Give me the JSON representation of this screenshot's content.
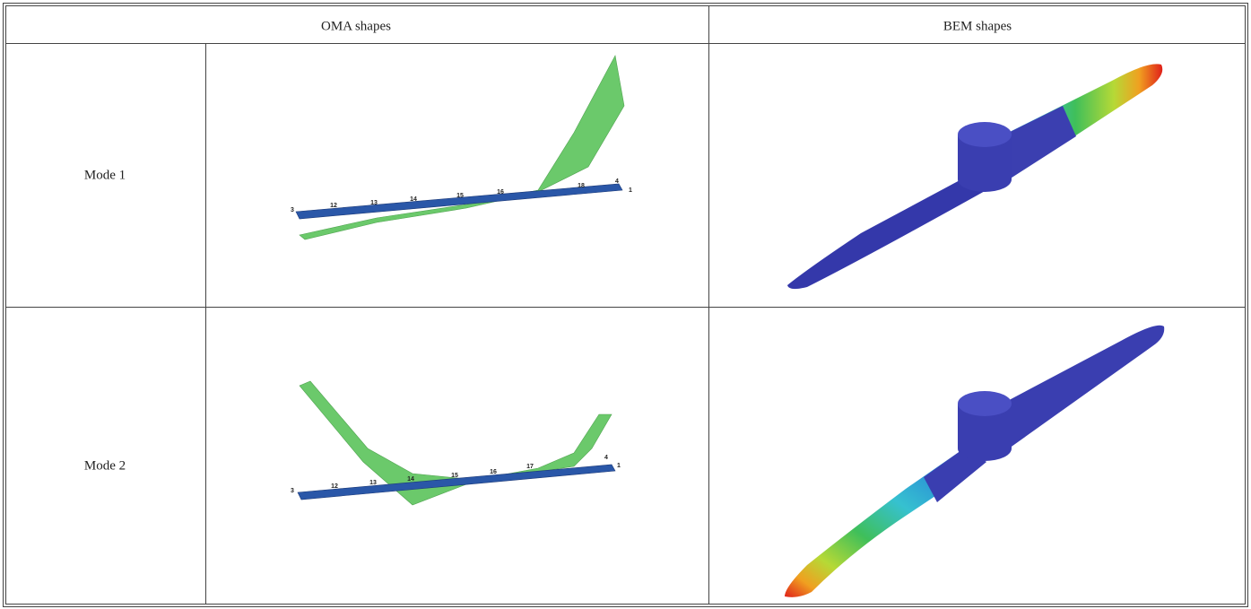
{
  "table": {
    "header": [
      "OMA shapes",
      "BEM shapes"
    ],
    "rows": [
      {
        "label": "Mode 1",
        "node_labels": [
          "3",
          "12",
          "13",
          "14",
          "15",
          "16",
          "18",
          "4",
          "1"
        ]
      },
      {
        "label": "Mode 2",
        "node_labels": [
          "3",
          "12",
          "13",
          "14",
          "15",
          "16",
          "17",
          "4",
          "1"
        ]
      }
    ]
  }
}
